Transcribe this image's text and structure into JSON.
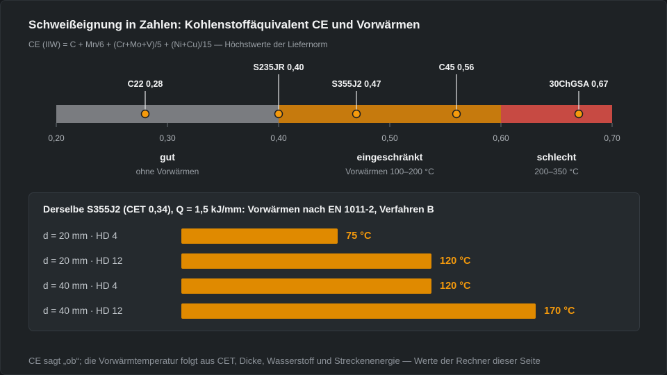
{
  "header": {
    "title": "Schweißeignung in Zahlen: Kohlenstoffäquivalent CE und Vorwärmen",
    "subtitle": "CE (IIW) = C + Mn/6 + (Cr+Mo+V)/5 + (Ni+Cu)/15 — Höchstwerte der Liefernorm"
  },
  "colors": {
    "good": "#7a7c80",
    "limited": "#c67a0d",
    "bad": "#c74a43",
    "marker": "#f59a0c",
    "bar": "#e08a00"
  },
  "chart_data": [
    {
      "type": "scatter",
      "axis": {
        "min": 0.2,
        "max": 0.7,
        "ticks": [
          0.2,
          0.3,
          0.4,
          0.5,
          0.6,
          0.7
        ],
        "tick_labels": [
          "0,20",
          "0,30",
          "0,40",
          "0,50",
          "0,60",
          "0,70"
        ]
      },
      "zones": [
        {
          "from": 0.2,
          "to": 0.4,
          "label": "gut",
          "sublabel": "ohne Vorwärmen",
          "color": "#7a7c80"
        },
        {
          "from": 0.4,
          "to": 0.6,
          "label": "eingeschränkt",
          "sublabel": "Vorwärmen 100–200 °C",
          "color": "#c67a0d"
        },
        {
          "from": 0.6,
          "to": 0.7,
          "label": "schlecht",
          "sublabel": "200–350 °C",
          "color": "#c74a43"
        }
      ],
      "points": [
        {
          "name": "C22",
          "ce": 0.28,
          "label": "C22 0,28",
          "tier": 0
        },
        {
          "name": "S235JR",
          "ce": 0.4,
          "label": "S235JR 0,40",
          "tier": 1
        },
        {
          "name": "S355J2",
          "ce": 0.47,
          "label": "S355J2 0,47",
          "tier": 0
        },
        {
          "name": "C45",
          "ce": 0.56,
          "label": "C45 0,56",
          "tier": 1
        },
        {
          "name": "30ChGSA",
          "ce": 0.67,
          "label": "30ChGSA 0,67",
          "tier": 0
        }
      ]
    },
    {
      "type": "bar",
      "title": "Derselbe S355J2 (CET 0,34), Q = 1,5 kJ/mm: Vorwärmen nach EN 1011-2, Verfahren B",
      "categories": [
        "d = 20 mm · HD 4",
        "d = 20 mm · HD 12",
        "d = 40 mm · HD 4",
        "d = 40 mm · HD 12"
      ],
      "values": [
        75,
        120,
        120,
        170
      ],
      "value_labels": [
        "75 °C",
        "120 °C",
        "120 °C",
        "170 °C"
      ],
      "unit": "°C"
    }
  ],
  "footer": "CE sagt „ob“; die Vorwärmtemperatur folgt aus CET, Dicke, Wasserstoff und Streckenenergie — Werte der Rechner dieser Seite"
}
